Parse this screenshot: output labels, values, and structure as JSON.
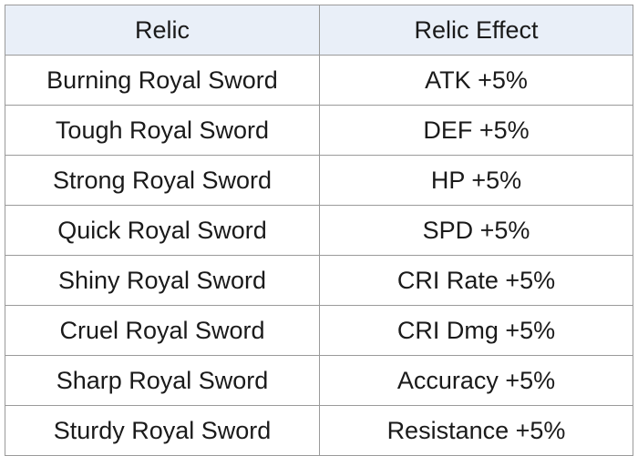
{
  "table": {
    "headers": [
      "Relic",
      "Relic Effect"
    ],
    "rows": [
      [
        "Burning Royal Sword",
        "ATK +5%"
      ],
      [
        "Tough Royal Sword",
        "DEF +5%"
      ],
      [
        "Strong Royal Sword",
        "HP +5%"
      ],
      [
        "Quick Royal Sword",
        "SPD +5%"
      ],
      [
        "Shiny Royal Sword",
        "CRI Rate +5%"
      ],
      [
        "Cruel Royal Sword",
        "CRI Dmg +5%"
      ],
      [
        "Sharp Royal Sword",
        "Accuracy +5%"
      ],
      [
        "Sturdy Royal Sword",
        "Resistance +5%"
      ]
    ]
  },
  "colors": {
    "header_background": "#e9eff8",
    "border": "#9a9a9a",
    "text": "#1a1a1a"
  }
}
